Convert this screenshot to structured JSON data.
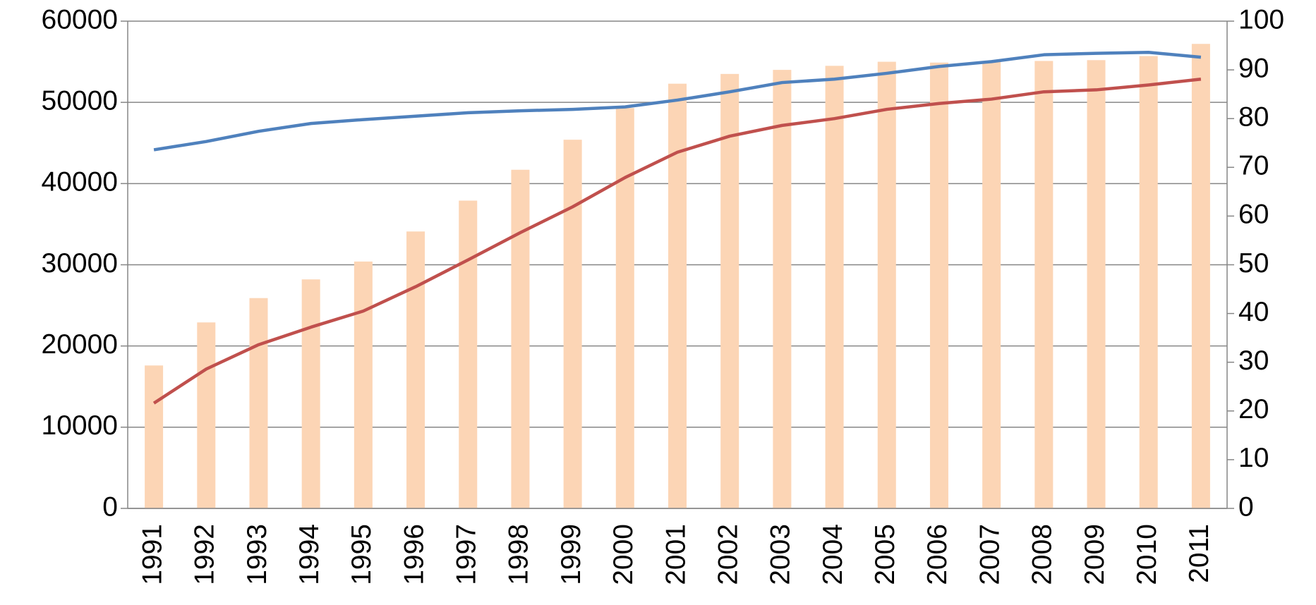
{
  "chart_data": {
    "type": "bar-line",
    "categories": [
      "1991",
      "1992",
      "1993",
      "1994",
      "1995",
      "1996",
      "1997",
      "1998",
      "1999",
      "2000",
      "2001",
      "2002",
      "2003",
      "2004",
      "2005",
      "2006",
      "2007",
      "2008",
      "2009",
      "2010",
      "2011"
    ],
    "series": [
      {
        "type": "bar",
        "color": "#fcd5b5",
        "values": [
          17600,
          22900,
          25900,
          28200,
          30400,
          34100,
          37900,
          41700,
          45400,
          49300,
          52300,
          53500,
          54000,
          54500,
          55000,
          54900,
          55100,
          55100,
          55200,
          55700,
          57200
        ]
      },
      {
        "type": "line",
        "axis": "y2",
        "color": "#4f81bd",
        "values": [
          73.6,
          75.3,
          77.4,
          79.0,
          79.8,
          80.5,
          81.2,
          81.6,
          81.9,
          82.4,
          83.8,
          85.5,
          87.4,
          88.1,
          89.3,
          90.7,
          91.7,
          93.1,
          93.4,
          93.6,
          92.6
        ]
      },
      {
        "type": "line",
        "axis": "y2",
        "color": "#c0504d",
        "values": [
          21.6,
          28.6,
          33.6,
          37.2,
          40.5,
          45.5,
          51.0,
          56.6,
          61.9,
          67.9,
          73.1,
          76.4,
          78.6,
          80.0,
          81.9,
          83.1,
          84.0,
          85.5,
          85.9,
          86.9,
          88.1
        ]
      }
    ],
    "ylim": [
      0,
      60000
    ],
    "yticks": [
      0,
      10000,
      20000,
      30000,
      40000,
      50000,
      60000
    ],
    "y2lim": [
      0,
      100
    ],
    "y2ticks": [
      0,
      10,
      20,
      30,
      40,
      50,
      60,
      70,
      80,
      90,
      100
    ],
    "grid": true
  }
}
